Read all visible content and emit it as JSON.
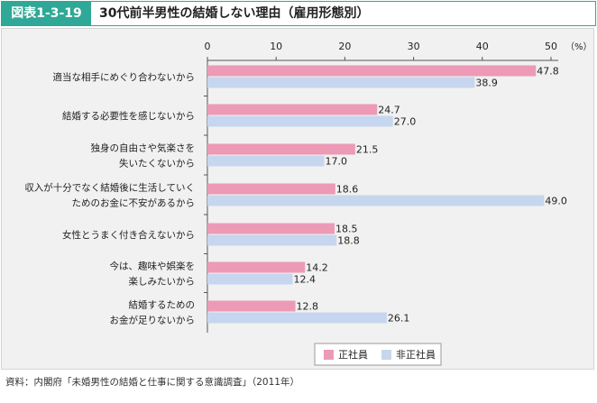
{
  "header": {
    "figure_label": "図表1-3-19",
    "title": "30代前半男性の結婚しない理由（雇用形態別）"
  },
  "source": "資料：内閣府「未婚男性の結婚と仕事に関する意識調査」（2011年）",
  "colors": {
    "accent": "#2fa897",
    "series_regular": "#ec9ab5",
    "series_nonregular": "#c6d6ee"
  },
  "chart_data": {
    "type": "bar",
    "orientation": "horizontal",
    "unit": "（%）",
    "xlim": [
      0,
      50
    ],
    "xticks": [
      0,
      10,
      20,
      30,
      40,
      50
    ],
    "grid": false,
    "legend_position": "bottom-right",
    "categories": [
      [
        "適当な相手にめぐり合わないから"
      ],
      [
        "結婚する必要性を感じないから"
      ],
      [
        "独身の自由さや気楽さを",
        "失いたくないから"
      ],
      [
        "収入が十分でなく結婚後に生活していく",
        "ためのお金に不安があるから"
      ],
      [
        "女性とうまく付き合えないから"
      ],
      [
        "今は、趣味や娯楽を",
        "楽しみたいから"
      ],
      [
        "結婚するための",
        "お金が足りないから"
      ]
    ],
    "series": [
      {
        "name": "正社員",
        "values": [
          47.8,
          24.7,
          21.5,
          18.6,
          18.5,
          14.2,
          12.8
        ]
      },
      {
        "name": "非正社員",
        "values": [
          38.9,
          27.0,
          17.0,
          49.0,
          18.8,
          12.4,
          26.1
        ]
      }
    ]
  }
}
